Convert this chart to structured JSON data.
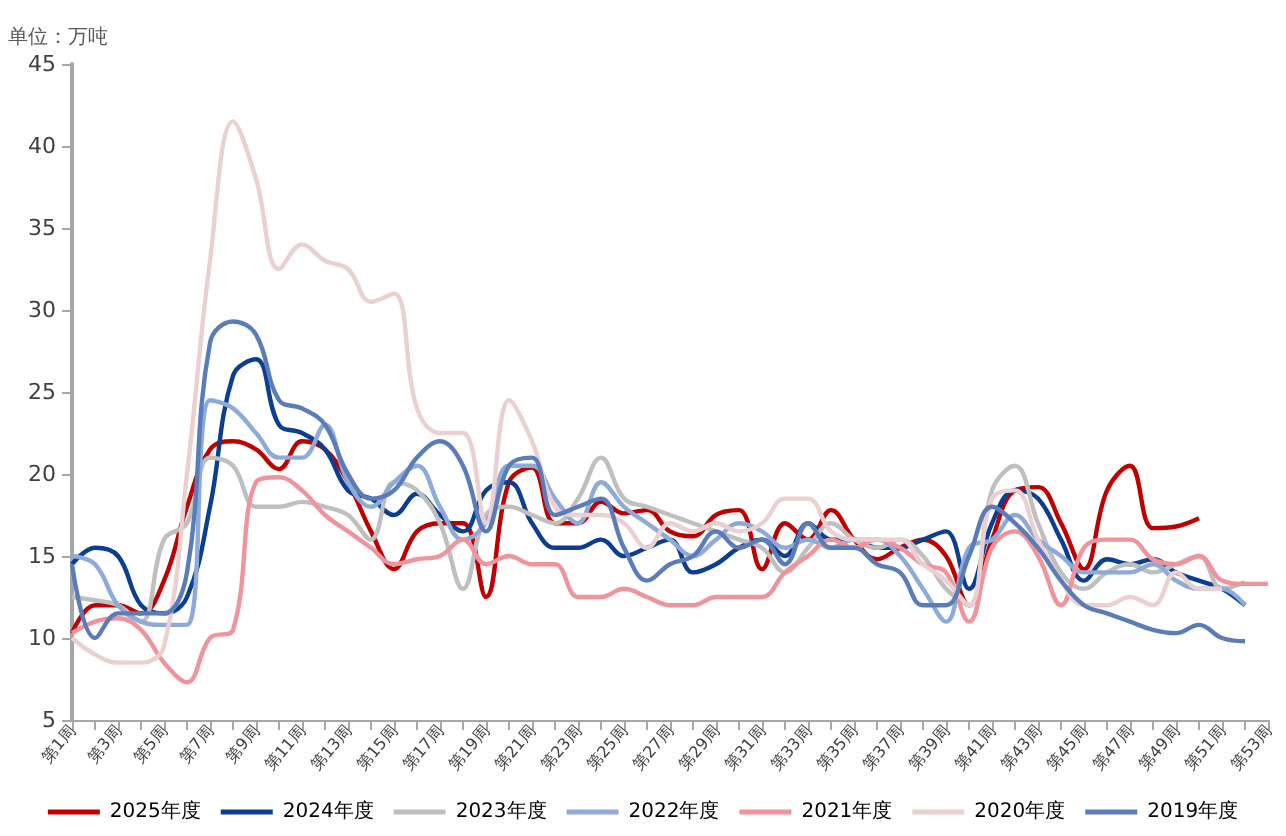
{
  "chart_data": {
    "type": "line",
    "ylabel": "单位：万吨",
    "categories": [
      "第1周",
      null,
      "第3周",
      null,
      "第5周",
      null,
      "第7周",
      null,
      "第9周",
      null,
      "第11周",
      null,
      "第13周",
      null,
      "第15周",
      null,
      "第17周",
      null,
      "第19周",
      null,
      "第21周",
      null,
      "第23周",
      null,
      "第25周",
      null,
      "第27周",
      null,
      "第29周",
      null,
      "第31周",
      null,
      "第33周",
      null,
      "第35周",
      null,
      "第37周",
      null,
      "第39周",
      null,
      "第41周",
      null,
      "第43周",
      null,
      "第45周",
      null,
      "第47周",
      null,
      "第49周",
      null,
      "第51周",
      null,
      "第53周"
    ],
    "series": [
      {
        "name": "2025年度",
        "color": "#c00000",
        "values": [
          10.3,
          12,
          12,
          11.5,
          13.5,
          18,
          21.5,
          22,
          21.5,
          20.3,
          22,
          21.5,
          19.5,
          16.5,
          14.2,
          16.5,
          17,
          17,
          12.5,
          19.5,
          20.4,
          17,
          17,
          18.3,
          17.6,
          17.8,
          16.5,
          16.2,
          17.5,
          17.8,
          14.2,
          17,
          16,
          17.8,
          16,
          14.8,
          15.5,
          16,
          15,
          12,
          16,
          19,
          19.2,
          17,
          14.2,
          19,
          20.5,
          16.7,
          16.8,
          17.3,
          null,
          null,
          null
        ]
      },
      {
        "name": "2024年度",
        "color": "#0b3d91",
        "values": [
          14.5,
          15.5,
          15,
          12,
          11.5,
          12.5,
          18,
          26,
          27,
          23,
          22.5,
          21.5,
          19,
          18.5,
          17.5,
          18.8,
          17.5,
          16.5,
          19,
          19.5,
          17,
          15.5,
          15.5,
          16,
          15,
          15.5,
          16,
          14,
          14.5,
          15.5,
          16,
          15,
          17,
          16,
          16,
          15.5,
          15.5,
          16,
          16.5,
          13,
          17,
          19,
          18.5,
          16,
          13.5,
          14.8,
          14.5,
          14.8,
          14,
          13.5,
          13,
          12,
          null
        ]
      },
      {
        "name": "2023年度",
        "color": "#bfbfbf",
        "values": [
          12.5,
          12.3,
          12,
          11,
          16,
          17,
          21,
          20.5,
          18,
          18,
          18.3,
          18,
          17.5,
          16,
          19.5,
          19,
          17,
          13,
          17.5,
          18,
          17.5,
          17,
          18.5,
          21,
          18.5,
          18,
          17.5,
          17,
          16.5,
          16,
          15.5,
          14,
          15.5,
          17,
          16,
          15.5,
          16,
          15,
          13,
          12,
          19,
          20.5,
          17,
          14,
          13,
          14,
          14.5,
          14,
          14.5,
          15,
          13,
          13.4,
          null
        ]
      },
      {
        "name": "2022年度",
        "color": "#8eaad8",
        "values": [
          15,
          14.5,
          12,
          11,
          10.8,
          10.8,
          24.5,
          24,
          22.5,
          21,
          21,
          23,
          19.5,
          18,
          19.5,
          20.5,
          18,
          16,
          17,
          20.5,
          20.5,
          18.5,
          17,
          19.5,
          18,
          17,
          16,
          15,
          16,
          17,
          16.5,
          15.5,
          16,
          15.5,
          16,
          16,
          15,
          13,
          11,
          15.5,
          16,
          17.5,
          16,
          15,
          14,
          14,
          14,
          14.5,
          13.5,
          13,
          13,
          12,
          null
        ]
      },
      {
        "name": "2021年度",
        "color": "#f0939c",
        "values": [
          10.3,
          11,
          11.2,
          10.5,
          8.5,
          7.3,
          10,
          10.5,
          19.5,
          19.8,
          19,
          17.5,
          16.5,
          15.5,
          14.5,
          14.8,
          15,
          16,
          14.5,
          15,
          14.5,
          14.5,
          12.5,
          12.5,
          13,
          12.5,
          12,
          12,
          12.5,
          12.5,
          12.5,
          14,
          15,
          16,
          15.5,
          16,
          15.5,
          14.5,
          14,
          11,
          15.5,
          16.5,
          15,
          12,
          15.5,
          16,
          16,
          14.8,
          14.5,
          15,
          13.5,
          13.3,
          13.3
        ]
      },
      {
        "name": "2020年度",
        "color": "#ebd0d2",
        "values": [
          10,
          9,
          8.5,
          8.5,
          9.5,
          20,
          33,
          41.5,
          38,
          32.5,
          34,
          33,
          32.5,
          30.5,
          31,
          24,
          22.5,
          22.5,
          17,
          24.5,
          22,
          18,
          17.5,
          17.5,
          17,
          15.5,
          17,
          16.5,
          17,
          16.5,
          17,
          18.5,
          18.5,
          16.5,
          16,
          16,
          16,
          14.5,
          13.5,
          12,
          18.5,
          19,
          16,
          13.5,
          12,
          12,
          12.5,
          12,
          14,
          13,
          13,
          null,
          null
        ]
      },
      {
        "name": "2019年度",
        "color": "#5a7dba",
        "values": [
          14.5,
          10,
          11.5,
          11.5,
          11.5,
          14,
          28,
          29.3,
          28.5,
          24.5,
          24,
          23,
          20,
          18.5,
          19,
          21,
          22,
          20.5,
          16.5,
          20.5,
          21,
          17.5,
          18,
          18.5,
          15.5,
          13.5,
          14.5,
          15,
          16.5,
          15.5,
          16,
          14.5,
          17,
          15.5,
          15.5,
          14.5,
          14,
          12,
          12,
          15,
          18,
          17,
          15.5,
          13.5,
          12,
          11.5,
          11,
          10.5,
          10.3,
          10.8,
          10,
          9.8,
          null
        ]
      }
    ],
    "ylim": [
      5,
      45
    ],
    "yticks": [
      5,
      10,
      15,
      20,
      25,
      30,
      35,
      40,
      45
    ],
    "legend": "bottom",
    "grid": false,
    "marker": "none"
  }
}
